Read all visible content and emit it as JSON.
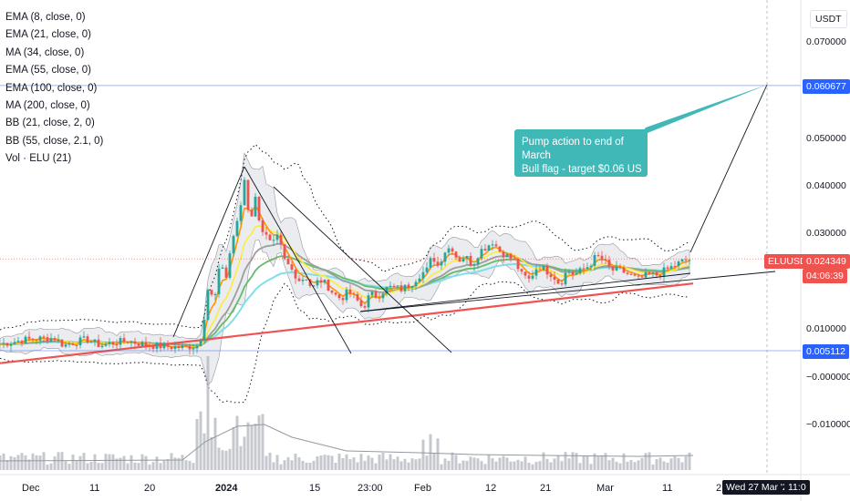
{
  "legend": [
    "EMA (8, close, 0)",
    "EMA (21, close, 0)",
    "MA (34, close, 0)",
    "EMA (55, close, 0)",
    "EMA (100, close, 0)",
    "MA (200, close, 0)",
    "BB (21, close, 2, 0)",
    "BB (55, close, 2.1, 0)",
    "Vol · ELU (21)"
  ],
  "price_axis": {
    "unit": "USDT",
    "ticks": [
      "0.070000",
      "0.050000",
      "0.040000",
      "0.030000",
      "0.010000",
      "−0.000000",
      "−0.010000"
    ]
  },
  "tags": {
    "target": "0.060677",
    "symbol": "ELUUSDT",
    "last": "0.024349",
    "countdown": "04:06:39",
    "support": "0.005112",
    "date": "Wed 27 Mar '24",
    "time_cut": "11:0"
  },
  "annotation": {
    "line1": "Pump action to end of March",
    "line2": "Bull flag - target $0.06 US"
  },
  "time_axis": [
    "Dec",
    "11",
    "20",
    "2024",
    "15",
    "23:00",
    "Feb",
    "12",
    "21",
    "Mar",
    "11",
    "2"
  ],
  "colors": {
    "up": "#26a69a",
    "down": "#ef5350",
    "ema8": "#ff9800",
    "ema21": "#ffeb3b",
    "ma34": "#9e9e9e",
    "ema55": "#66bb6a",
    "ema100": "#80deea",
    "ma200": "#ef5350",
    "bb_fill": "#d1d4dc",
    "callout": "#41b8b8"
  },
  "chart_data": {
    "type": "candlestick",
    "symbol": "ELUUSDT",
    "unit": "USDT",
    "ylim": [
      -0.0125,
      0.076
    ],
    "y_ticks": [
      0.07,
      0.05,
      0.04,
      0.03,
      0.01,
      0.0,
      -0.01
    ],
    "last_price": 0.024349,
    "target_price": 0.060677,
    "support_price": 0.005112,
    "close_segments": [
      [
        0,
        0.0065
      ],
      [
        30,
        0.0075
      ],
      [
        60,
        0.0078
      ],
      [
        70,
        0.0062
      ],
      [
        80,
        0.0068
      ],
      [
        95,
        0.0075
      ],
      [
        110,
        0.0062
      ],
      [
        125,
        0.0068
      ],
      [
        140,
        0.0072
      ],
      [
        160,
        0.0063
      ],
      [
        180,
        0.006
      ],
      [
        200,
        0.0058
      ],
      [
        218,
        0.0062
      ],
      [
        222,
        0.0095
      ],
      [
        228,
        0.018
      ],
      [
        235,
        0.0155
      ],
      [
        242,
        0.024
      ],
      [
        248,
        0.0205
      ],
      [
        254,
        0.028
      ],
      [
        262,
        0.033
      ],
      [
        268,
        0.041
      ],
      [
        274,
        0.032
      ],
      [
        280,
        0.037
      ],
      [
        286,
        0.031
      ],
      [
        292,
        0.029
      ],
      [
        298,
        0.027
      ],
      [
        305,
        0.029
      ],
      [
        312,
        0.024
      ],
      [
        320,
        0.022
      ],
      [
        328,
        0.02
      ],
      [
        336,
        0.0205
      ],
      [
        342,
        0.018
      ],
      [
        350,
        0.02
      ],
      [
        358,
        0.019
      ],
      [
        366,
        0.017
      ],
      [
        374,
        0.016
      ],
      [
        382,
        0.0175
      ],
      [
        390,
        0.016
      ],
      [
        398,
        0.014
      ],
      [
        406,
        0.017
      ],
      [
        414,
        0.0165
      ],
      [
        422,
        0.018
      ],
      [
        430,
        0.0185
      ],
      [
        440,
        0.018
      ],
      [
        450,
        0.019
      ],
      [
        460,
        0.021
      ],
      [
        468,
        0.022
      ],
      [
        474,
        0.025
      ],
      [
        480,
        0.023
      ],
      [
        488,
        0.026
      ],
      [
        495,
        0.027
      ],
      [
        502,
        0.024
      ],
      [
        510,
        0.025
      ],
      [
        518,
        0.023
      ],
      [
        526,
        0.026
      ],
      [
        534,
        0.027
      ],
      [
        540,
        0.028
      ],
      [
        548,
        0.026
      ],
      [
        556,
        0.025
      ],
      [
        564,
        0.024
      ],
      [
        572,
        0.021
      ],
      [
        580,
        0.02
      ],
      [
        590,
        0.023
      ],
      [
        598,
        0.022
      ],
      [
        606,
        0.021
      ],
      [
        614,
        0.019
      ],
      [
        622,
        0.022
      ],
      [
        630,
        0.021
      ],
      [
        638,
        0.022
      ],
      [
        646,
        0.023
      ],
      [
        654,
        0.025
      ],
      [
        662,
        0.024
      ],
      [
        670,
        0.022
      ],
      [
        680,
        0.022
      ],
      [
        690,
        0.021
      ],
      [
        700,
        0.02
      ],
      [
        710,
        0.021
      ],
      [
        720,
        0.021
      ],
      [
        730,
        0.022
      ],
      [
        740,
        0.023
      ],
      [
        750,
        0.024
      ],
      [
        758,
        0.0243
      ]
    ]
  }
}
